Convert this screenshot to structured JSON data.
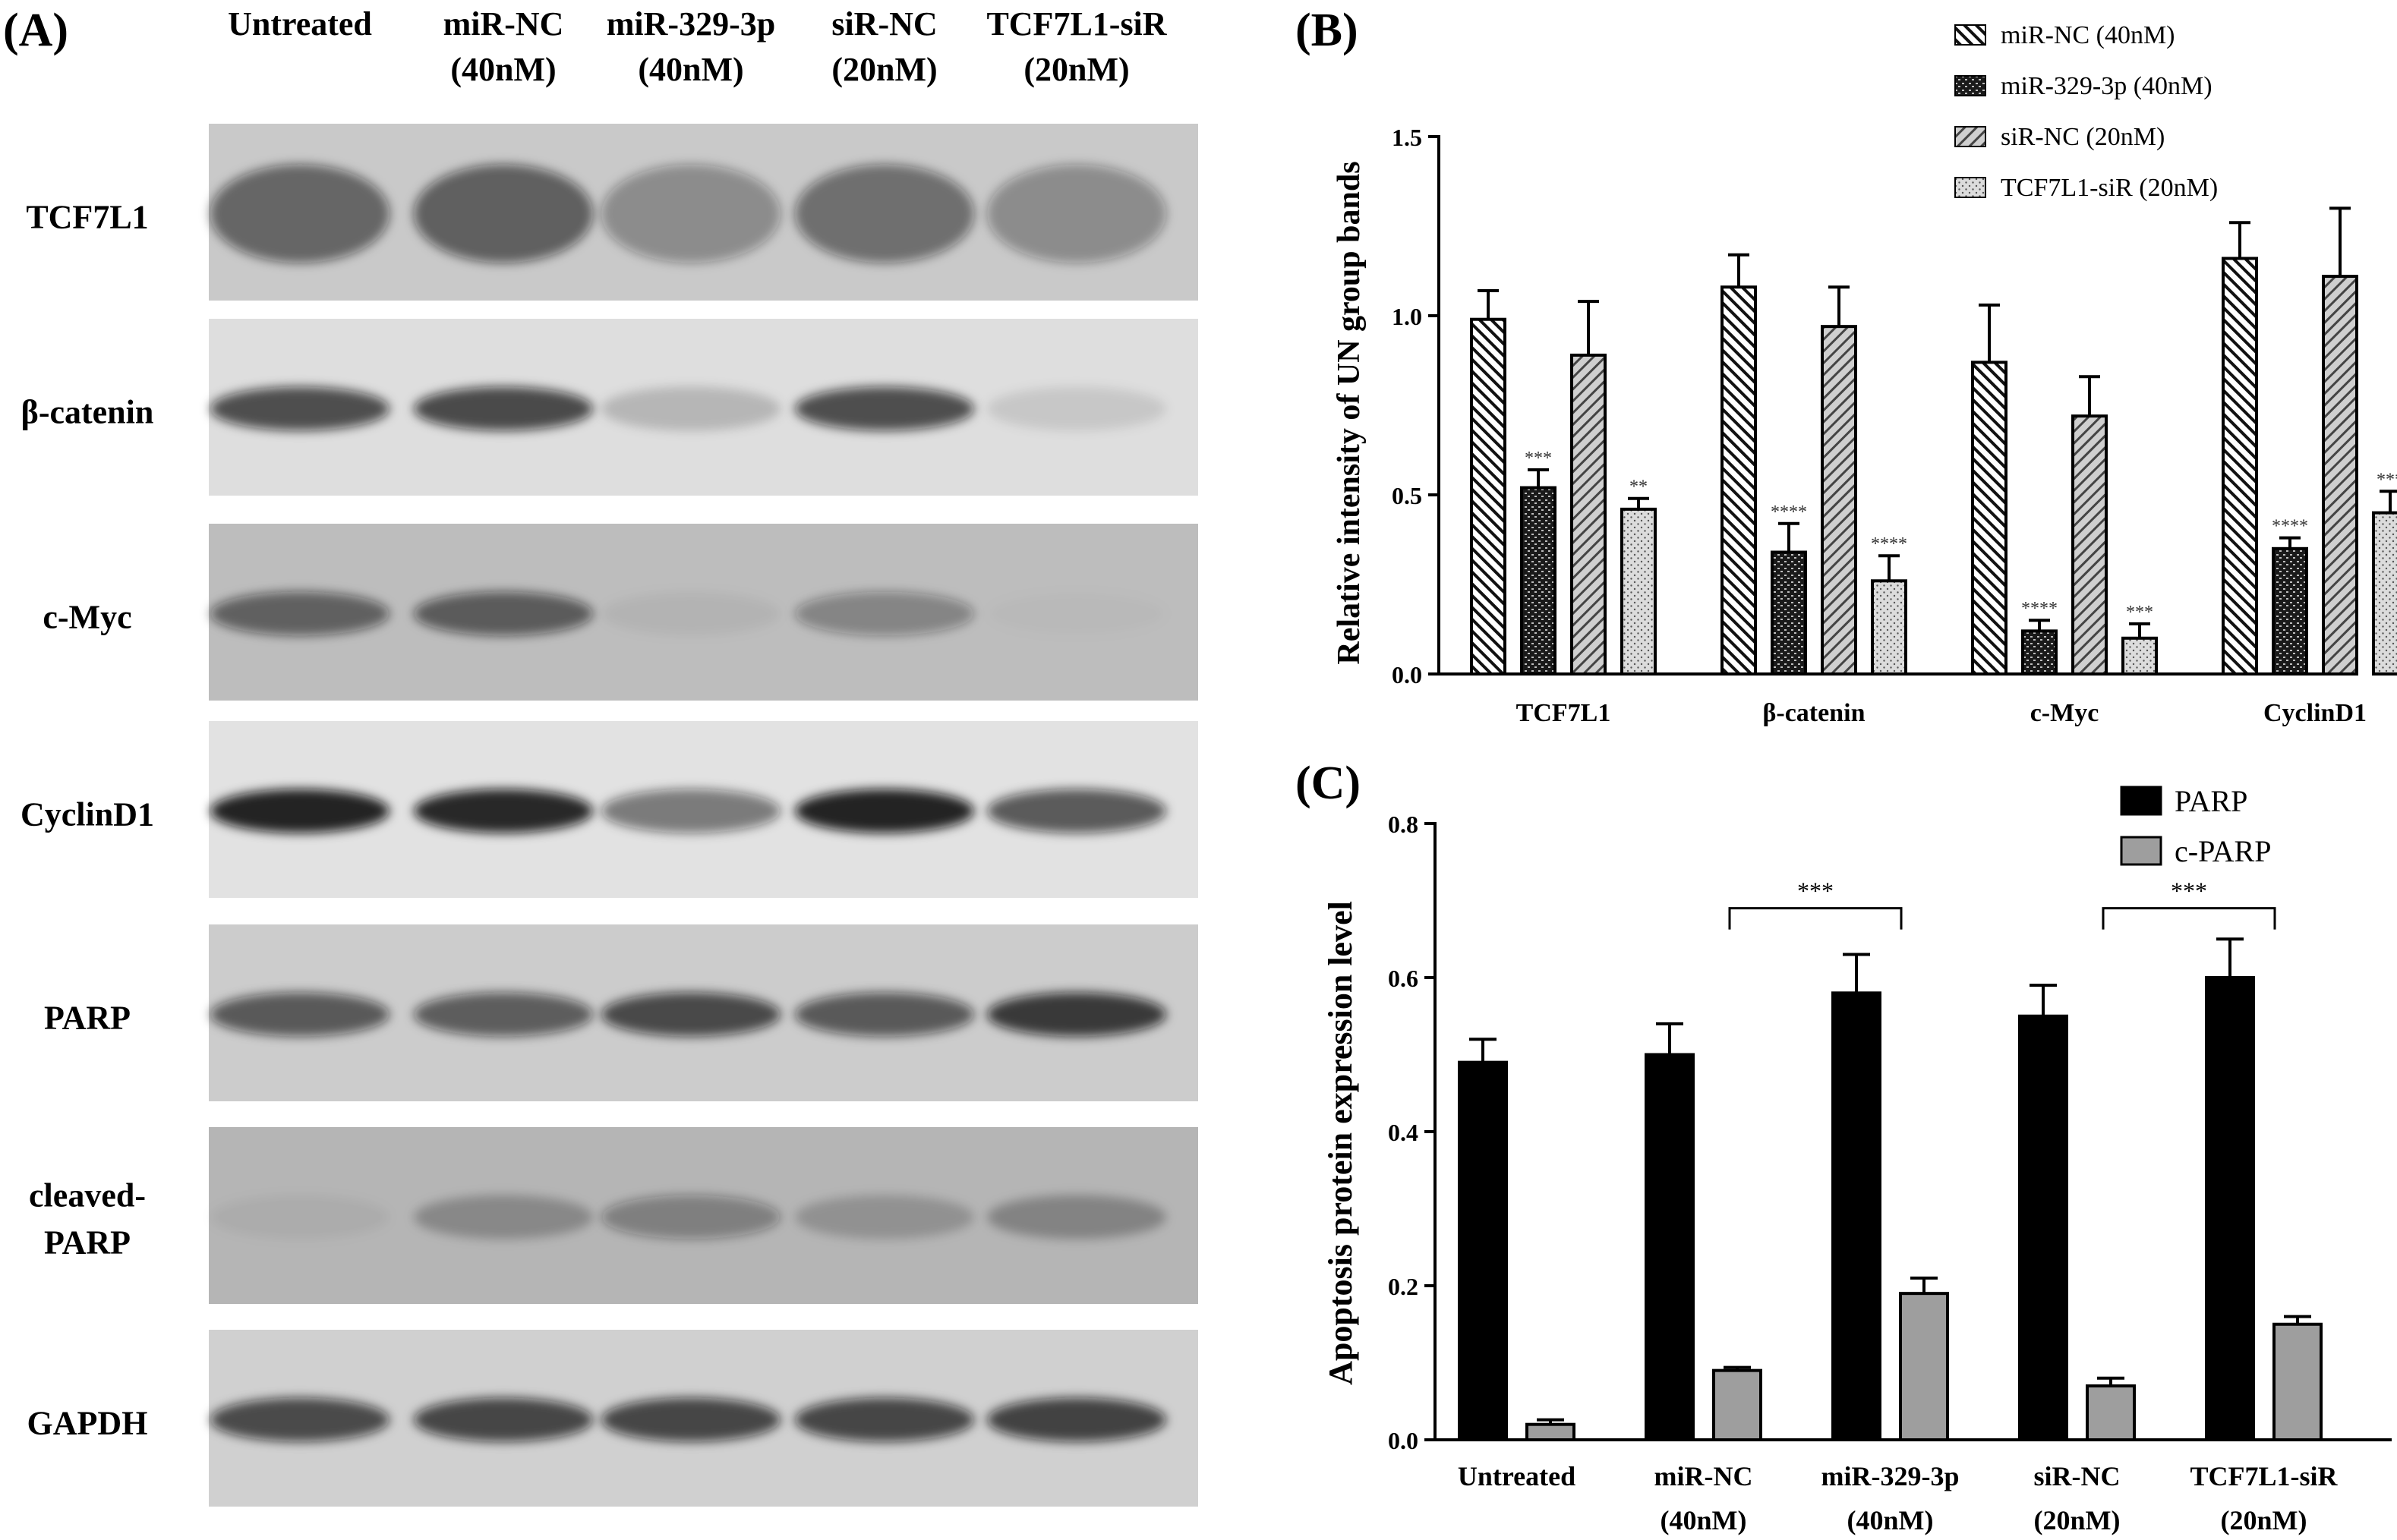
{
  "panel_a": {
    "panel_label": "(A)",
    "lanes": [
      {
        "line1": "Untreated",
        "line2": ""
      },
      {
        "line1": "miR-NC",
        "line2": "(40nM)"
      },
      {
        "line1": "miR-329-3p",
        "line2": "(40nM)"
      },
      {
        "line1": "siR-NC",
        "line2": "(20nM)"
      },
      {
        "line1": "TCF7L1-siR",
        "line2": "(20nM)"
      }
    ],
    "blots": [
      {
        "label": [
          "TCF7L1"
        ],
        "bg": "#c9c9c9",
        "intensity": [
          0.55,
          0.58,
          0.35,
          0.5,
          0.35
        ]
      },
      {
        "label": [
          "β-catenin"
        ],
        "bg": "#dedede",
        "intensity": [
          0.7,
          0.72,
          0.18,
          0.7,
          0.1
        ]
      },
      {
        "label": [
          "c-Myc"
        ],
        "bg": "#bdbdbd",
        "intensity": [
          0.55,
          0.58,
          0.05,
          0.35,
          0.02
        ]
      },
      {
        "label": [
          "CyclinD1"
        ],
        "bg": "#e2e2e2",
        "intensity": [
          0.9,
          0.88,
          0.5,
          0.9,
          0.65
        ]
      },
      {
        "label": [
          "PARP"
        ],
        "bg": "#cccccc",
        "intensity": [
          0.62,
          0.6,
          0.7,
          0.62,
          0.78
        ]
      },
      {
        "label": [
          "cleaved-",
          "PARP"
        ],
        "bg": "#b5b5b5",
        "intensity": [
          0.05,
          0.25,
          0.35,
          0.2,
          0.28
        ]
      },
      {
        "label": [
          "GAPDH"
        ],
        "bg": "#d0d0d0",
        "intensity": [
          0.7,
          0.72,
          0.72,
          0.72,
          0.74
        ]
      }
    ]
  },
  "chart_data": [
    {
      "panel_label": "(B)",
      "type": "bar",
      "title": "",
      "xlabel": "",
      "ylabel": "Relative intensity of UN group bands",
      "ylim": [
        0,
        1.5
      ],
      "yticks": [
        "0.0",
        "0.5",
        "1.0",
        "1.5"
      ],
      "categories": [
        "TCF7L1",
        "β-catenin",
        "c-Myc",
        "CyclinD1"
      ],
      "legend_position": "top-right",
      "series": [
        {
          "name": "miR-NC (40nM)",
          "pattern": "back-diagonal",
          "values": [
            0.99,
            1.08,
            0.87,
            1.16
          ],
          "errors": [
            0.08,
            0.09,
            0.16,
            0.1
          ],
          "sig": [
            "",
            "",
            "",
            ""
          ]
        },
        {
          "name": "miR-329-3p (40nM)",
          "pattern": "dark-dotted",
          "values": [
            0.52,
            0.34,
            0.12,
            0.35
          ],
          "errors": [
            0.05,
            0.08,
            0.03,
            0.03
          ],
          "sig": [
            "***",
            "****",
            "****",
            "****"
          ]
        },
        {
          "name": "siR-NC (20nM)",
          "pattern": "forward-diagonal",
          "values": [
            0.89,
            0.97,
            0.72,
            1.11
          ],
          "errors": [
            0.15,
            0.11,
            0.11,
            0.19
          ],
          "sig": [
            "",
            "",
            "",
            ""
          ]
        },
        {
          "name": "TCF7L1-siR (20nM)",
          "pattern": "light-dotted",
          "values": [
            0.46,
            0.26,
            0.1,
            0.45
          ],
          "errors": [
            0.03,
            0.07,
            0.04,
            0.06
          ],
          "sig": [
            "**",
            "****",
            "***",
            "***"
          ]
        }
      ]
    },
    {
      "panel_label": "(C)",
      "type": "bar",
      "title": "",
      "xlabel": "",
      "ylabel": "Apoptosis protein expression level",
      "ylim": [
        0,
        0.8
      ],
      "yticks": [
        "0.0",
        "0.2",
        "0.4",
        "0.6",
        "0.8"
      ],
      "categories": [
        {
          "line1": "Untreated",
          "line2": ""
        },
        {
          "line1": "miR-NC",
          "line2": "(40nM)"
        },
        {
          "line1": "miR-329-3p",
          "line2": "(40nM)"
        },
        {
          "line1": "siR-NC",
          "line2": "(20nM)"
        },
        {
          "line1": "TCF7L1-siR",
          "line2": "(20nM)"
        }
      ],
      "legend_position": "top-right",
      "series": [
        {
          "name": "PARP",
          "color": "#000000",
          "values": [
            0.49,
            0.5,
            0.58,
            0.55,
            0.6
          ],
          "errors": [
            0.03,
            0.04,
            0.05,
            0.04,
            0.05
          ]
        },
        {
          "name": "c-PARP",
          "color": "#9e9e9e",
          "values": [
            0.02,
            0.09,
            0.19,
            0.07,
            0.15
          ],
          "errors": [
            0.006,
            0.004,
            0.02,
            0.01,
            0.01
          ]
        }
      ],
      "brackets": [
        {
          "from": 1,
          "to": 2,
          "label": "***",
          "y": 0.69
        },
        {
          "from": 3,
          "to": 4,
          "label": "***",
          "y": 0.69
        }
      ]
    }
  ]
}
